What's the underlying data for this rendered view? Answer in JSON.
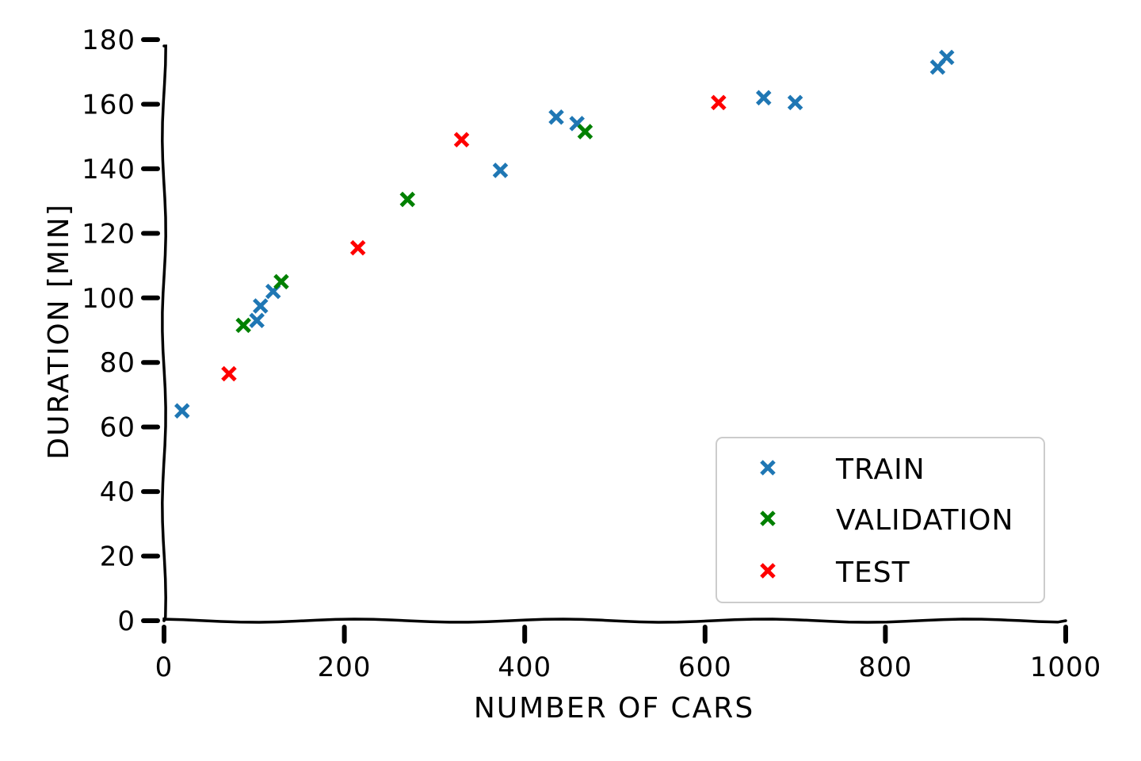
{
  "chart_data": {
    "type": "scatter",
    "title": "",
    "xlabel": "Number of cars",
    "ylabel": "Duration [min]",
    "xlim": [
      0,
      1000
    ],
    "ylim": [
      0,
      180
    ],
    "x_ticks": [
      0,
      200,
      400,
      600,
      800,
      1000
    ],
    "y_ticks": [
      0,
      20,
      40,
      60,
      80,
      100,
      120,
      140,
      160,
      180
    ],
    "grid": false,
    "legend_position": "lower-right",
    "marker": "x",
    "series": [
      {
        "name": "Train",
        "color": "#1f77b4",
        "points": [
          {
            "x": 20,
            "y": 65
          },
          {
            "x": 103,
            "y": 93
          },
          {
            "x": 107,
            "y": 97.5
          },
          {
            "x": 121,
            "y": 102
          },
          {
            "x": 373,
            "y": 139.5
          },
          {
            "x": 435,
            "y": 156
          },
          {
            "x": 458,
            "y": 154
          },
          {
            "x": 665,
            "y": 162
          },
          {
            "x": 700,
            "y": 160.5
          },
          {
            "x": 858,
            "y": 171.5
          },
          {
            "x": 868,
            "y": 174.5
          }
        ]
      },
      {
        "name": "Validation",
        "color": "#008000",
        "points": [
          {
            "x": 88,
            "y": 91.5
          },
          {
            "x": 130,
            "y": 105
          },
          {
            "x": 270,
            "y": 130.5
          },
          {
            "x": 467,
            "y": 151.5
          }
        ]
      },
      {
        "name": "Test",
        "color": "#ff0000",
        "points": [
          {
            "x": 72,
            "y": 76.5
          },
          {
            "x": 215,
            "y": 115.5
          },
          {
            "x": 330,
            "y": 149
          },
          {
            "x": 615,
            "y": 160.5
          }
        ]
      }
    ]
  }
}
